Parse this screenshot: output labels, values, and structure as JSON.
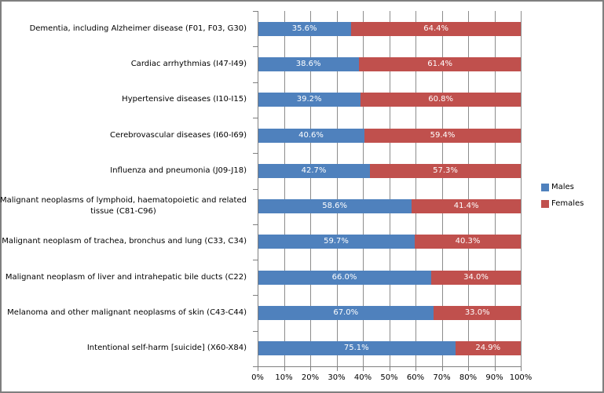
{
  "chart_data": {
    "type": "bar",
    "orientation": "horizontal",
    "stacked": true,
    "value_unit": "%",
    "title": "",
    "categories": [
      "Dementia, including Alzheimer disease (F01, F03, G30)",
      "Cardiac arrhythmias (I47-I49)",
      "Hypertensive diseases (I10-I15)",
      "Cerebrovascular diseases (I60-I69)",
      "Influenza and pneumonia (J09-J18)",
      "Malignant neoplasms of lymphoid, haematopoietic and related tissue (C81-C96)",
      "Malignant neoplasm of trachea, bronchus and lung (C33, C34)",
      "Malignant neoplasm of liver and intrahepatic bile ducts (C22)",
      "Melanoma and other malignant neoplasms of skin  (C43-C44)",
      "Intentional self-harm [suicide] (X60-X84)"
    ],
    "series": [
      {
        "name": "Males",
        "color": "#4f81bd",
        "values": [
          35.6,
          38.6,
          39.2,
          40.6,
          42.7,
          58.6,
          59.7,
          66.0,
          67.0,
          75.1
        ]
      },
      {
        "name": "Females",
        "color": "#c0504d",
        "values": [
          64.4,
          61.4,
          60.8,
          59.4,
          57.3,
          41.4,
          40.3,
          34.0,
          33.0,
          24.9
        ]
      }
    ],
    "x_axis": {
      "min": 0,
      "max": 100,
      "tick_labels": [
        "0%",
        "10%",
        "20%",
        "30%",
        "40%",
        "50%",
        "60%",
        "70%",
        "80%",
        "90%",
        "100%"
      ]
    },
    "legend": {
      "position": "right",
      "entries": [
        "Males",
        "Females"
      ]
    },
    "grid": true,
    "data_label_decimals": 1,
    "colors": {
      "males": "#4f81bd",
      "females": "#c0504d",
      "gridline": "#8c8c8c",
      "axis": "#7f7f7f",
      "frame_border": "#7f7f7f",
      "data_label_text": "#ffffff",
      "text": "#000000",
      "background": "#ffffff"
    }
  }
}
